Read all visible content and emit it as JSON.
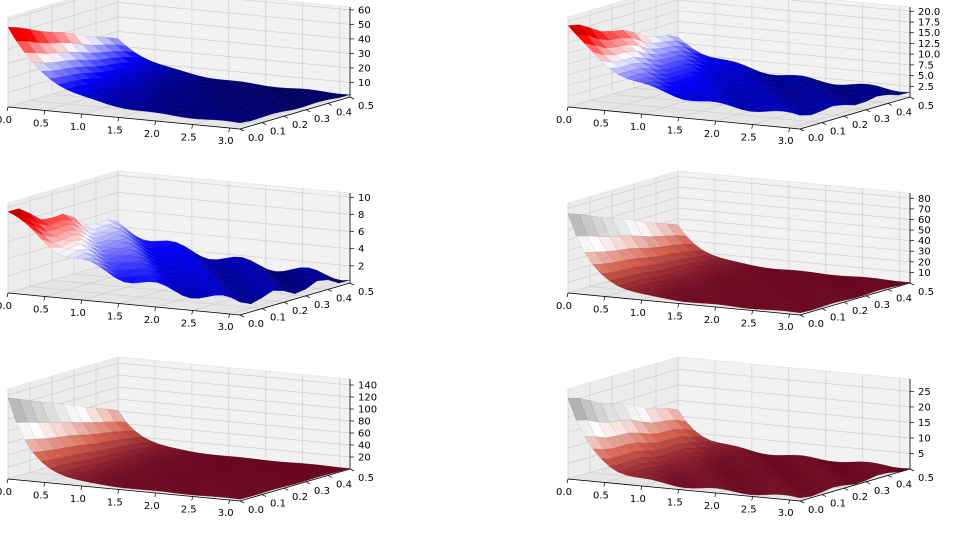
{
  "chart_data": [
    {
      "type": "surface3d",
      "panel": "top-left",
      "colormap": "seismic",
      "x_ticks": [
        "0.0",
        "0.5",
        "1.0",
        "1.5",
        "2.0",
        "2.5",
        "3.0"
      ],
      "y_ticks": [
        "0.0",
        "0.1",
        "0.2",
        "0.3",
        "0.4",
        "0.5"
      ],
      "z_ticks": [
        "10",
        "20",
        "30",
        "40",
        "50",
        "60"
      ],
      "xlim": [
        0,
        3.14
      ],
      "ylim": [
        0,
        0.5
      ],
      "zlim": [
        0,
        62
      ],
      "surface_profile": {
        "peak": 55,
        "decay": 1.8,
        "floor": 4
      }
    },
    {
      "type": "surface3d",
      "panel": "top-right",
      "colormap": "seismic",
      "x_ticks": [
        "0.0",
        "0.5",
        "1.0",
        "1.5",
        "2.0",
        "2.5",
        "3.0"
      ],
      "y_ticks": [
        "0.0",
        "0.1",
        "0.2",
        "0.3",
        "0.4",
        "0.5"
      ],
      "z_ticks": [
        "2.5",
        "5.0",
        "7.5",
        "10.0",
        "12.5",
        "15.0",
        "17.5",
        "20.0"
      ],
      "xlim": [
        0,
        3.14
      ],
      "ylim": [
        0,
        0.5
      ],
      "zlim": [
        0,
        21
      ],
      "surface_profile": {
        "peak": 19,
        "decay": 1.4,
        "floor": 3
      }
    },
    {
      "type": "surface3d",
      "panel": "middle-left",
      "colormap": "seismic",
      "x_ticks": [
        "0.0",
        "0.5",
        "1.0",
        "1.5",
        "2.0",
        "2.5",
        "3.0"
      ],
      "y_ticks": [
        "0.0",
        "0.1",
        "0.2",
        "0.3",
        "0.4",
        "0.5"
      ],
      "z_ticks": [
        "2",
        "4",
        "6",
        "8",
        "10"
      ],
      "xlim": [
        0,
        3.14
      ],
      "ylim": [
        0,
        0.5
      ],
      "zlim": [
        0,
        10.5
      ],
      "surface_profile": {
        "peak": 9.5,
        "decay": 0.9,
        "floor": 1
      }
    },
    {
      "type": "surface3d",
      "panel": "middle-right",
      "colormap": "RdGy",
      "x_ticks": [
        "0.0",
        "0.5",
        "1.0",
        "1.5",
        "2.0",
        "2.5",
        "3.0"
      ],
      "y_ticks": [
        "0.0",
        "0.1",
        "0.2",
        "0.3",
        "0.4",
        "0.5"
      ],
      "z_ticks": [
        "10",
        "20",
        "30",
        "40",
        "50",
        "60",
        "70",
        "80"
      ],
      "xlim": [
        0,
        3.14
      ],
      "ylim": [
        0,
        0.5
      ],
      "zlim": [
        0,
        85
      ],
      "surface_profile": {
        "peak": 75,
        "decay": 3.0,
        "floor": 2
      }
    },
    {
      "type": "surface3d",
      "panel": "bottom-left",
      "colormap": "RdGy",
      "x_ticks": [
        "0.0",
        "0.5",
        "1.0",
        "1.5",
        "2.0",
        "2.5",
        "3.0"
      ],
      "y_ticks": [
        "0.0",
        "0.1",
        "0.2",
        "0.3",
        "0.4",
        "0.5"
      ],
      "z_ticks": [
        "20",
        "40",
        "60",
        "80",
        "100",
        "120",
        "140"
      ],
      "xlim": [
        0,
        3.14
      ],
      "ylim": [
        0,
        0.5
      ],
      "zlim": [
        0,
        150
      ],
      "surface_profile": {
        "peak": 135,
        "decay": 3.2,
        "floor": 3
      }
    },
    {
      "type": "surface3d",
      "panel": "bottom-right",
      "colormap": "RdGy",
      "x_ticks": [
        "0.0",
        "0.5",
        "1.0",
        "1.5",
        "2.0",
        "2.5",
        "3.0"
      ],
      "y_ticks": [
        "0.0",
        "0.1",
        "0.2",
        "0.3",
        "0.4",
        "0.5"
      ],
      "z_ticks": [
        "5",
        "10",
        "15",
        "20",
        "25"
      ],
      "xlim": [
        0,
        3.14
      ],
      "ylim": [
        0,
        0.5
      ],
      "zlim": [
        0,
        29
      ],
      "surface_profile": {
        "peak": 26,
        "decay": 3.0,
        "floor": 1
      }
    }
  ]
}
